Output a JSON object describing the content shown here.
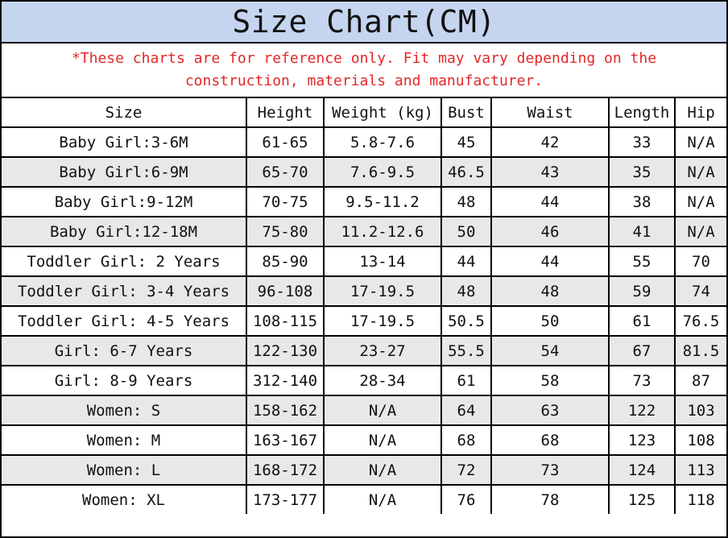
{
  "title": "Size Chart(CM)",
  "note": "*These charts are for reference only. Fit may vary depending on the construction, materials and manufacturer.",
  "colors": {
    "title_band": "#c5d5f0",
    "note_text": "#e32828",
    "alt_row": "#e8e8e8",
    "border": "#000000"
  },
  "headers": [
    "Size",
    "Height",
    "Weight (kg)",
    "Bust",
    "Waist",
    "Length",
    "Hip"
  ],
  "rows": [
    [
      "Baby Girl:3-6M",
      "61-65",
      "5.8-7.6",
      "45",
      "42",
      "33",
      "N/A"
    ],
    [
      "Baby Girl:6-9M",
      "65-70",
      "7.6-9.5",
      "46.5",
      "43",
      "35",
      "N/A"
    ],
    [
      "Baby Girl:9-12M",
      "70-75",
      "9.5-11.2",
      "48",
      "44",
      "38",
      "N/A"
    ],
    [
      "Baby Girl:12-18M",
      "75-80",
      "11.2-12.6",
      "50",
      "46",
      "41",
      "N/A"
    ],
    [
      "Toddler Girl: 2 Years",
      "85-90",
      "13-14",
      "44",
      "44",
      "55",
      "70"
    ],
    [
      "Toddler Girl: 3-4 Years",
      "96-108",
      "17-19.5",
      "48",
      "48",
      "59",
      "74"
    ],
    [
      "Toddler Girl: 4-5 Years",
      "108-115",
      "17-19.5",
      "50.5",
      "50",
      "61",
      "76.5"
    ],
    [
      "Girl: 6-7 Years",
      "122-130",
      "23-27",
      "55.5",
      "54",
      "67",
      "81.5"
    ],
    [
      "Girl: 8-9 Years",
      "312-140",
      "28-34",
      "61",
      "58",
      "73",
      "87"
    ],
    [
      "Women: S",
      "158-162",
      "N/A",
      "64",
      "63",
      "122",
      "103"
    ],
    [
      "Women: M",
      "163-167",
      "N/A",
      "68",
      "68",
      "123",
      "108"
    ],
    [
      "Women: L",
      "168-172",
      "N/A",
      "72",
      "73",
      "124",
      "113"
    ],
    [
      "Women: XL",
      "173-177",
      "N/A",
      "76",
      "78",
      "125",
      "118"
    ]
  ]
}
